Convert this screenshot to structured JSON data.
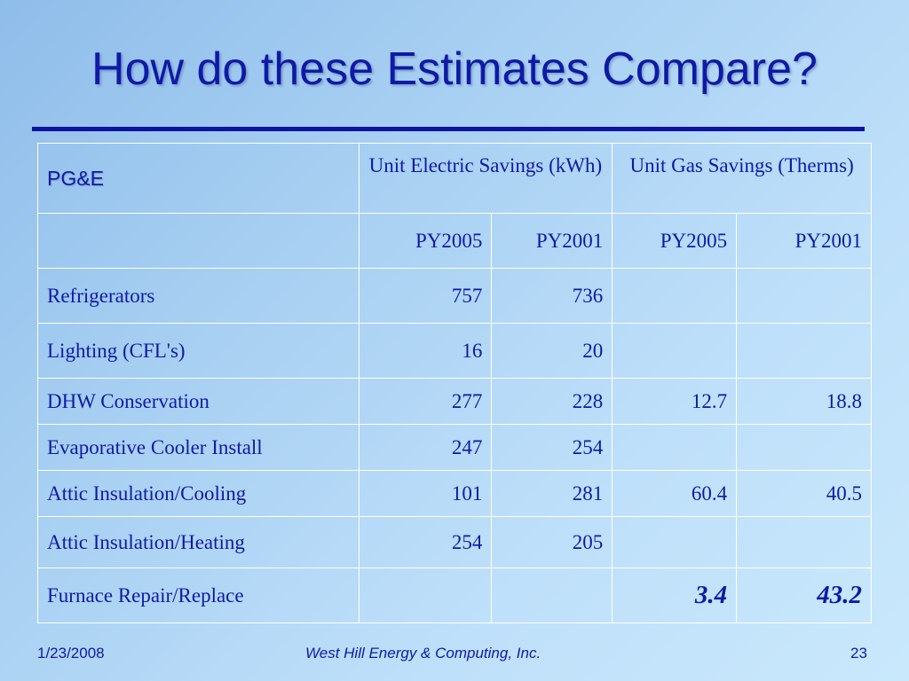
{
  "slide": {
    "title": "How do these Estimates Compare?"
  },
  "table": {
    "corner_label": "PG&E",
    "group_headers": [
      "Unit Electric Savings (kWh)",
      "Unit Gas Savings (Therms)"
    ],
    "year_headers": [
      "PY2005",
      "PY2001",
      "PY2005",
      "PY2001"
    ],
    "rows": [
      {
        "label": "Refrigerators",
        "values": [
          "757",
          "736",
          "",
          ""
        ]
      },
      {
        "label": "Lighting (CFL's)",
        "values": [
          "16",
          "20",
          "",
          ""
        ]
      },
      {
        "label": "DHW Conservation",
        "values": [
          "277",
          "228",
          "12.7",
          "18.8"
        ]
      },
      {
        "label": "Evaporative Cooler Install",
        "values": [
          "247",
          "254",
          "",
          ""
        ]
      },
      {
        "label": "Attic Insulation/Cooling",
        "values": [
          "101",
          "281",
          "60.4",
          "40.5"
        ]
      },
      {
        "label": "Attic Insulation/Heating",
        "values": [
          "254",
          "205",
          "",
          ""
        ]
      },
      {
        "label": "Furnace Repair/Replace",
        "values": [
          "",
          "",
          "3.4",
          "43.2"
        ]
      }
    ]
  },
  "footer": {
    "date": "1/23/2008",
    "company": "West Hill Energy & Computing, Inc.",
    "page": "23"
  },
  "colors": {
    "text": "#0e1aa6",
    "rule": "#0c14a0",
    "grid": "#ffffff"
  }
}
